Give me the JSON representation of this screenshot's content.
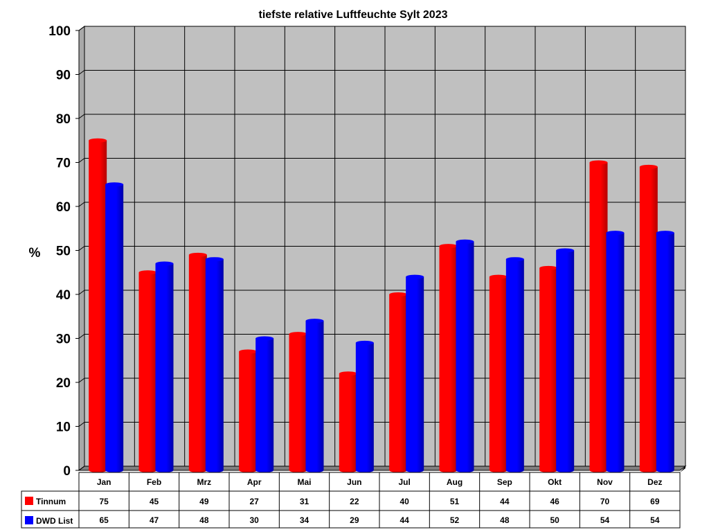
{
  "chart_data": {
    "type": "bar",
    "title": "tiefste relative Luftfeuchte Sylt 2023",
    "ylabel": "%",
    "xlabel": "",
    "ylim": [
      0,
      100
    ],
    "yticks": [
      "0",
      "10",
      "20",
      "30",
      "40",
      "50",
      "60",
      "70",
      "80",
      "90",
      "100"
    ],
    "grid": true,
    "legend": "data-table",
    "categories": [
      "Jan",
      "Feb",
      "Mrz",
      "Apr",
      "Mai",
      "Jun",
      "Jul",
      "Aug",
      "Sep",
      "Okt",
      "Nov",
      "Dez"
    ],
    "series": [
      {
        "name": "Tinnum",
        "color": "#ff0000",
        "values": [
          75,
          45,
          49,
          27,
          31,
          22,
          40,
          51,
          44,
          46,
          70,
          69
        ],
        "labels": [
          "75",
          "45",
          "49",
          "27",
          "31",
          "22",
          "40",
          "51",
          "44",
          "46",
          "70",
          "69"
        ]
      },
      {
        "name": "DWD List",
        "color": "#0000ff",
        "values": [
          65,
          47,
          48,
          30,
          34,
          29,
          44,
          52,
          48,
          50,
          54,
          54
        ],
        "labels": [
          "65",
          "47",
          "48",
          "30",
          "34",
          "29",
          "44",
          "52",
          "48",
          "50",
          "54",
          "54"
        ]
      }
    ],
    "plot_background": "#c0c0c0"
  }
}
